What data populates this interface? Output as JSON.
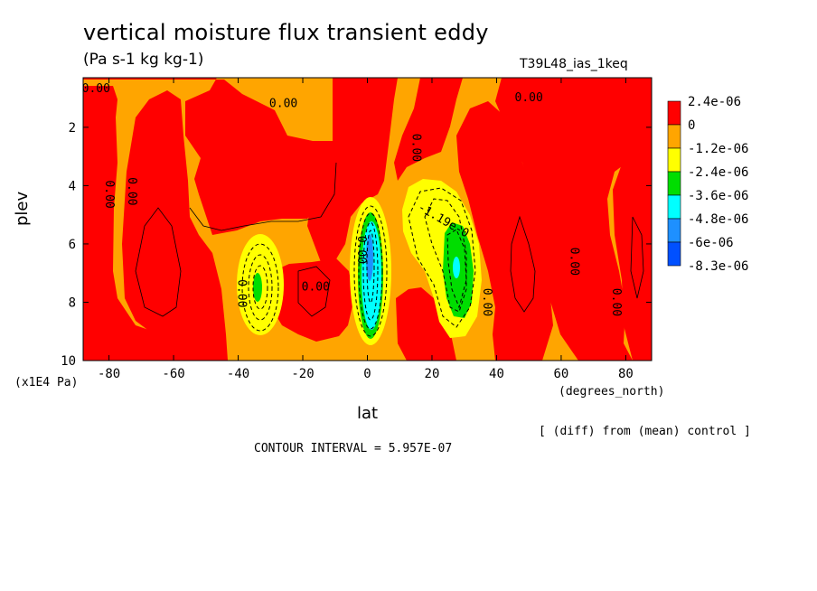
{
  "chart_data": {
    "type": "heatmap",
    "title": "vertical moisture flux transient eddy",
    "units": "(Pa s-1 kg kg-1)",
    "run_id": "T39L48_ias_1keq",
    "xlabel": "lat",
    "x_units": "(degrees_north)",
    "ylabel": "plev",
    "y_units": "(x1E4 Pa)",
    "xlim": [
      -88,
      88
    ],
    "ylim": [
      0.3,
      10
    ],
    "x_ticks": [
      "-80",
      "-60",
      "-40",
      "-20",
      "0",
      "20",
      "40",
      "60",
      "80"
    ],
    "x_tick_values": [
      -80,
      -60,
      -40,
      -20,
      0,
      20,
      40,
      60,
      80
    ],
    "y_ticks": [
      "2",
      "4",
      "6",
      "8",
      "10"
    ],
    "y_tick_values": [
      2,
      4,
      6,
      8,
      10
    ],
    "y_inverted": true,
    "legend": {
      "placement": "right",
      "labels": [
        "2.4e-06",
        "0",
        "-1.2e-06",
        "-2.4e-06",
        "-3.6e-06",
        "-4.8e-06",
        "-6e-06",
        "-8.3e-06"
      ],
      "colors": [
        "#ff0000",
        "#ffa500",
        "#ffff00",
        "#00dd00",
        "#00ffff",
        "#1e90ff",
        "#0050ff"
      ]
    },
    "contour_labels": [
      {
        "text": "0.00",
        "x": -84,
        "y": 0.8
      },
      {
        "text": "0.00",
        "x": -26,
        "y": 1.3
      },
      {
        "text": "0.00",
        "x": 50,
        "y": 1.1
      },
      {
        "text": "0.00",
        "x": 14,
        "y": 2.7
      },
      {
        "text": "0.00",
        "x": -81,
        "y": 4.3
      },
      {
        "text": "0.00",
        "x": -74,
        "y": 4.2
      },
      {
        "text": "0.00",
        "x": -40,
        "y": 7.7
      },
      {
        "text": "0.00",
        "x": -16,
        "y": 7.6
      },
      {
        "text": "0.00",
        "x": -3,
        "y": 6.2
      },
      {
        "text": "0.00",
        "x": 36,
        "y": 8.0
      },
      {
        "text": "0.00",
        "x": 63,
        "y": 6.6
      },
      {
        "text": "0.00",
        "x": 76,
        "y": 8.0
      },
      {
        "text": "-1.19e-0",
        "x": 23,
        "y": 5.3
      }
    ],
    "fields": [
      {
        "level": "0",
        "color": "#ffa500",
        "x": -88,
        "y": 10
      },
      {
        "level": "2.4e-06",
        "color": "#ff0000",
        "x": -75,
        "y": 3,
        "note": "positive regions"
      },
      {
        "level": "-1.2e-06",
        "color": "#ffff00",
        "x": -34,
        "y": 7.5
      },
      {
        "level": "-1.2e-06",
        "color": "#ffff00",
        "x": 20,
        "y": 5.3
      },
      {
        "level": "-2.4e-06",
        "color": "#00dd00",
        "x": 27,
        "y": 7.0
      },
      {
        "level": "-4.8e-06",
        "color": "#00ffff",
        "x": 1,
        "y": 7.0
      },
      {
        "level": "-6e-06",
        "color": "#1e90ff",
        "x": 1,
        "y": 6.6
      }
    ],
    "contour_interval_text": "CONTOUR INTERVAL = 5.957E-07",
    "diff_text": "[ (diff) from (mean) control ]"
  }
}
